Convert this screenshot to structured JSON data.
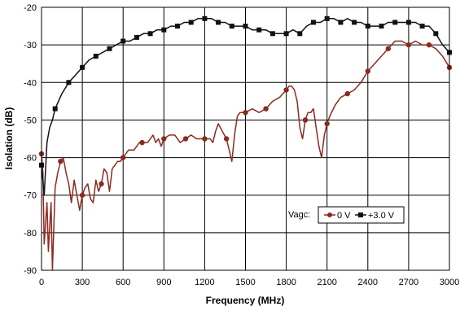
{
  "chart_data": {
    "type": "line",
    "xlabel": "Frequency (MHz)",
    "ylabel": "Isolation (dB)",
    "xlim": [
      0,
      3000
    ],
    "ylim": [
      -90,
      -20
    ],
    "x_ticks": [
      0,
      300,
      600,
      900,
      1200,
      1500,
      1800,
      2100,
      2400,
      2700,
      3000
    ],
    "y_ticks": [
      -20,
      -30,
      -40,
      -50,
      -60,
      -70,
      -80,
      -90
    ],
    "grid": true,
    "legend": {
      "title": "Vagc:",
      "position": "lower-right"
    },
    "colors": {
      "s0": "#8b2a1f",
      "s1": "#111111",
      "grid": "#000000"
    },
    "series": [
      {
        "name": "0 V",
        "marker": "circle",
        "x": [
          0,
          10,
          20,
          40,
          50,
          70,
          80,
          100,
          120,
          140,
          160,
          180,
          200,
          220,
          240,
          260,
          280,
          300,
          320,
          340,
          360,
          380,
          400,
          420,
          440,
          460,
          480,
          500,
          520,
          540,
          560,
          580,
          600,
          620,
          640,
          660,
          680,
          700,
          720,
          740,
          760,
          780,
          800,
          820,
          840,
          860,
          880,
          900,
          940,
          980,
          1020,
          1060,
          1100,
          1140,
          1180,
          1200,
          1220,
          1240,
          1260,
          1280,
          1300,
          1330,
          1360,
          1380,
          1400,
          1420,
          1440,
          1460,
          1480,
          1500,
          1550,
          1600,
          1650,
          1700,
          1750,
          1800,
          1820,
          1840,
          1860,
          1880,
          1900,
          1920,
          1940,
          1960,
          1980,
          2000,
          2020,
          2040,
          2060,
          2080,
          2100,
          2120,
          2160,
          2200,
          2250,
          2300,
          2350,
          2400,
          2450,
          2500,
          2550,
          2600,
          2650,
          2700,
          2750,
          2800,
          2850,
          2900,
          2950,
          3000
        ],
        "y": [
          -59,
          -64,
          -83,
          -72,
          -85,
          -72,
          -90,
          -68,
          -64,
          -61,
          -60,
          -64,
          -67,
          -72,
          -66,
          -70,
          -74,
          -70,
          -68,
          -67,
          -71,
          -72,
          -66,
          -69,
          -67,
          -63,
          -64,
          -69,
          -63,
          -62,
          -61,
          -61,
          -60,
          -59,
          -58,
          -58,
          -58,
          -57,
          -56,
          -56,
          -56,
          -56,
          -55,
          -54,
          -56,
          -55,
          -57,
          -55,
          -54,
          -54,
          -56,
          -55,
          -54,
          -55,
          -55,
          -55,
          -55,
          -55,
          -56,
          -53,
          -51,
          -53,
          -55,
          -58,
          -61,
          -54,
          -49,
          -48,
          -48,
          -48,
          -47,
          -48,
          -47,
          -45,
          -44,
          -42,
          -41,
          -41,
          -42,
          -45,
          -52,
          -55,
          -50,
          -48,
          -48,
          -47,
          -52,
          -57,
          -60,
          -54,
          -51,
          -49,
          -46,
          -44,
          -43,
          -42,
          -40,
          -37,
          -35,
          -33,
          -31,
          -29,
          -29,
          -30,
          -29,
          -30,
          -30,
          -31,
          -33,
          -36
        ]
      },
      {
        "name": "+3.0 V",
        "marker": "square",
        "x": [
          0,
          20,
          40,
          60,
          80,
          100,
          150,
          200,
          250,
          300,
          350,
          400,
          450,
          500,
          550,
          600,
          650,
          700,
          750,
          800,
          850,
          900,
          950,
          1000,
          1050,
          1100,
          1150,
          1200,
          1250,
          1300,
          1350,
          1400,
          1450,
          1500,
          1550,
          1600,
          1650,
          1700,
          1750,
          1800,
          1850,
          1900,
          1950,
          2000,
          2050,
          2100,
          2150,
          2200,
          2250,
          2300,
          2350,
          2400,
          2450,
          2500,
          2550,
          2600,
          2650,
          2700,
          2750,
          2800,
          2850,
          2900,
          2950,
          3000
        ],
        "y": [
          -62,
          -70,
          -56,
          -52,
          -50,
          -47,
          -43,
          -40,
          -38,
          -36,
          -34,
          -33,
          -32,
          -31,
          -30,
          -29,
          -29,
          -28,
          -27,
          -27,
          -26,
          -26,
          -25,
          -25,
          -24,
          -24,
          -23,
          -23,
          -23,
          -24,
          -24,
          -25,
          -25,
          -25,
          -26,
          -26,
          -26,
          -27,
          -27,
          -27,
          -26,
          -27,
          -25,
          -24,
          -24,
          -23,
          -23,
          -24,
          -23,
          -24,
          -24,
          -25,
          -25,
          -25,
          -24,
          -24,
          -24,
          -24,
          -24,
          -25,
          -25,
          -27,
          -30,
          -32
        ]
      }
    ]
  }
}
